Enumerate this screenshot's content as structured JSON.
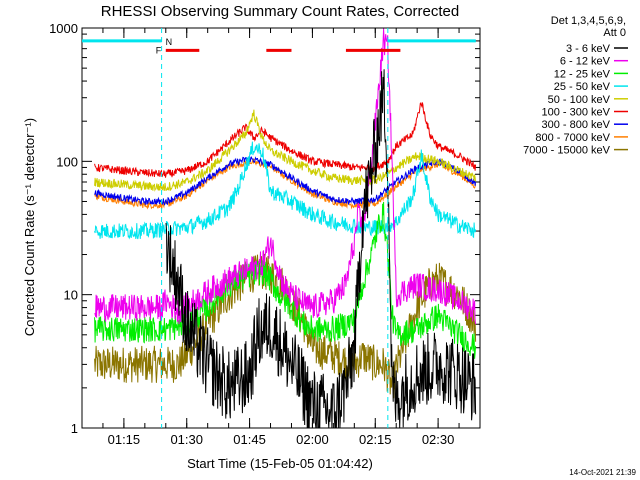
{
  "chart_data": {
    "type": "line",
    "title": "RHESSI Observing Summary Count Rates, Corrected",
    "xlabel": "Start Time (15-Feb-05 01:04:42)",
    "ylabel": "Corrected Count Rate (s⁻¹ detector⁻¹)",
    "yscale": "log",
    "ylim": [
      1,
      1000
    ],
    "xlim_minutes": [
      65,
      160
    ],
    "x_ticks": [
      "01:15",
      "01:30",
      "01:45",
      "02:00",
      "02:15",
      "02:30"
    ],
    "y_ticks": [
      "1",
      "10",
      "100",
      "1000"
    ],
    "legend_header": [
      "Det 1,3,4,5,6,9,",
      "Att 0"
    ],
    "legend_position": "right",
    "timestamp": "14-Oct-2021 21:39",
    "flags": {
      "night_label": "N",
      "flare_label": "F",
      "night_intervals_min": [
        [
          65,
          84
        ],
        [
          138,
          159
        ]
      ],
      "flare_intervals_min": [
        [
          85,
          93
        ],
        [
          109,
          115
        ],
        [
          128,
          141
        ]
      ],
      "night_color": "#00e5ee",
      "flare_color": "#ee0000"
    },
    "series": [
      {
        "name": "3 - 6 keV",
        "color": "#000000",
        "x": [
          68,
          80,
          84,
          85,
          88,
          90,
          95,
          100,
          105,
          107,
          110,
          115,
          120,
          125,
          128,
          130,
          132,
          134,
          136,
          137,
          138,
          139,
          140,
          142,
          145,
          150,
          155,
          159
        ],
        "values": [
          null,
          null,
          null,
          25,
          12,
          6,
          3,
          2,
          2.5,
          5,
          6,
          3,
          1.5,
          1.3,
          2,
          4,
          40,
          80,
          200,
          330,
          100,
          2,
          1.6,
          2,
          2.5,
          3,
          2.5,
          2
        ]
      },
      {
        "name": "6 - 12 keV",
        "color": "#ee00ee",
        "x": [
          68,
          75,
          84,
          85,
          88,
          92,
          96,
          100,
          104,
          108,
          110,
          113,
          115,
          118,
          120,
          125,
          128,
          130,
          131,
          132,
          134,
          136,
          137,
          138,
          139,
          140,
          145,
          148,
          150,
          155,
          159
        ],
        "values": [
          8,
          8,
          8,
          9,
          7.5,
          9,
          11,
          13,
          15,
          17,
          25,
          12,
          10,
          8.5,
          8,
          9,
          12,
          25,
          40,
          30,
          90,
          400,
          800,
          700,
          100,
          10,
          12,
          11,
          11,
          9,
          7.5
        ]
      },
      {
        "name": "12 - 25 keV",
        "color": "#00ee00",
        "x": [
          68,
          80,
          85,
          90,
          95,
          100,
          105,
          108,
          110,
          112,
          115,
          118,
          120,
          125,
          128,
          130,
          132,
          134,
          136,
          137,
          138,
          139,
          140,
          145,
          150,
          155,
          159
        ],
        "values": [
          5.5,
          5.5,
          5.5,
          6,
          8,
          12,
          14,
          15,
          13,
          10,
          8,
          6,
          5.5,
          5.5,
          6,
          6.5,
          12,
          20,
          35,
          40,
          20,
          7,
          5,
          5.5,
          7,
          5,
          4
        ]
      },
      {
        "name": "25 - 50 keV",
        "color": "#00e5ee",
        "x": [
          68,
          75,
          80,
          85,
          90,
          95,
          100,
          102,
          104,
          106,
          108,
          110,
          115,
          120,
          125,
          130,
          132,
          135,
          138,
          140,
          144,
          146,
          148,
          150,
          155,
          159
        ],
        "values": [
          30,
          30,
          30,
          31,
          32,
          36,
          45,
          60,
          90,
          130,
          120,
          60,
          50,
          40,
          35,
          33,
          32,
          32,
          33,
          35,
          55,
          110,
          55,
          40,
          33,
          30
        ]
      },
      {
        "name": "50 - 100 keV",
        "color": "#cdcd00",
        "x": [
          68,
          75,
          80,
          85,
          90,
          95,
          100,
          104,
          106,
          108,
          110,
          115,
          120,
          125,
          130,
          135,
          138,
          140,
          145,
          150,
          155,
          159
        ],
        "values": [
          70,
          67,
          65,
          64,
          70,
          85,
          120,
          160,
          230,
          150,
          120,
          100,
          85,
          75,
          72,
          72,
          80,
          90,
          110,
          100,
          85,
          75
        ]
      },
      {
        "name": "100 - 300 keV",
        "color": "#ee0000",
        "x": [
          68,
          75,
          80,
          85,
          90,
          95,
          100,
          104,
          106,
          108,
          110,
          115,
          120,
          125,
          130,
          135,
          138,
          140,
          144,
          146,
          148,
          150,
          155,
          159
        ],
        "values": [
          90,
          85,
          82,
          80,
          85,
          100,
          140,
          180,
          150,
          170,
          150,
          120,
          100,
          95,
          90,
          90,
          100,
          130,
          160,
          280,
          160,
          130,
          110,
          90
        ]
      },
      {
        "name": "300 - 800 keV",
        "color": "#0000ee",
        "x": [
          68,
          75,
          80,
          85,
          90,
          95,
          100,
          105,
          110,
          115,
          120,
          125,
          130,
          135,
          140,
          145,
          150,
          155,
          159
        ],
        "values": [
          58,
          53,
          50,
          50,
          58,
          75,
          95,
          105,
          95,
          75,
          60,
          52,
          50,
          52,
          70,
          90,
          100,
          85,
          68
        ]
      },
      {
        "name": "800 - 7000 keV",
        "color": "#ff7f00",
        "x": [
          68,
          75,
          80,
          85,
          90,
          95,
          100,
          105,
          110,
          115,
          120,
          125,
          130,
          135,
          140,
          145,
          150,
          155,
          159
        ],
        "values": [
          55,
          50,
          47,
          47,
          55,
          72,
          90,
          100,
          92,
          72,
          57,
          50,
          47,
          48,
          65,
          85,
          95,
          80,
          65
        ]
      },
      {
        "name": "7000 - 15000 keV",
        "color": "#8b7500",
        "x": [
          68,
          75,
          80,
          85,
          88,
          90,
          95,
          100,
          105,
          108,
          110,
          113,
          115,
          118,
          120,
          125,
          130,
          132,
          135,
          137,
          138,
          139,
          140,
          145,
          148,
          150,
          155,
          159
        ],
        "values": [
          3,
          3,
          3,
          3,
          3,
          3.5,
          6,
          10,
          14,
          15,
          14,
          12,
          9,
          6,
          4,
          3.5,
          3,
          3.5,
          3,
          3,
          2.5,
          2,
          2.8,
          8,
          12,
          13,
          10,
          6
        ]
      }
    ]
  }
}
